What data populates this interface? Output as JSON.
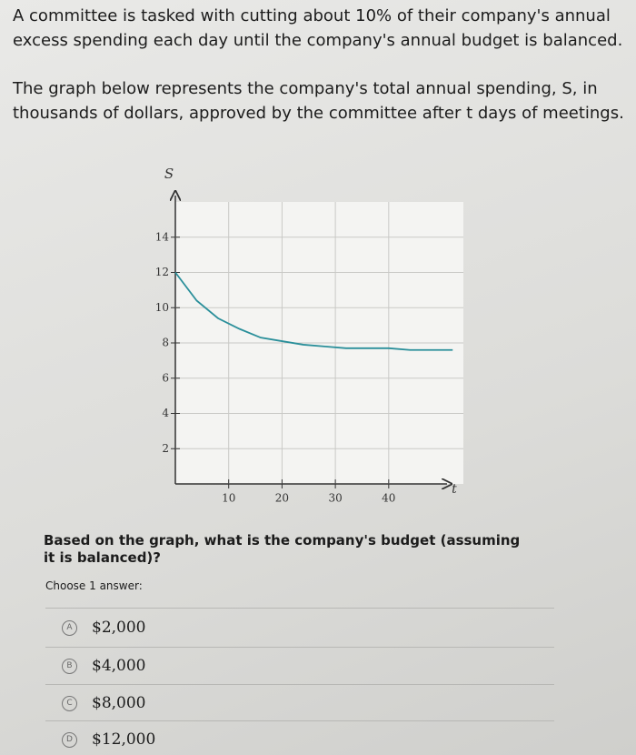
{
  "intro": "A committee is tasked with cutting about 10% of their company's annual excess spending each day until the company's annual budget is balanced.",
  "description": "The graph below represents the company's total annual spending, S, in thousands of dollars, approved by the committee after t days of meetings.",
  "chart_data": {
    "type": "line",
    "x_label": "t",
    "y_label": "S",
    "x": [
      0,
      4,
      8,
      12,
      16,
      20,
      24,
      28,
      32,
      36,
      40,
      44,
      48,
      52
    ],
    "values": [
      12,
      10.4,
      9.4,
      8.8,
      8.3,
      8.1,
      7.9,
      7.8,
      7.7,
      7.7,
      7.7,
      7.6,
      7.6,
      7.6
    ],
    "color": "#2a8f9a",
    "xlim": [
      0,
      54
    ],
    "ylim": [
      0,
      16
    ],
    "xticks": [
      10,
      20,
      30,
      40
    ],
    "yticks": [
      2,
      4,
      6,
      8,
      10,
      12,
      14
    ],
    "grid": true
  },
  "prompt": "Based on the graph, what is the company's budget (assuming it is balanced)?",
  "instruction": "Choose 1 answer:",
  "choices": [
    {
      "letter": "A",
      "text": "$2,000"
    },
    {
      "letter": "B",
      "text": "$4,000"
    },
    {
      "letter": "C",
      "text": "$8,000"
    },
    {
      "letter": "D",
      "text": "$12,000"
    }
  ]
}
